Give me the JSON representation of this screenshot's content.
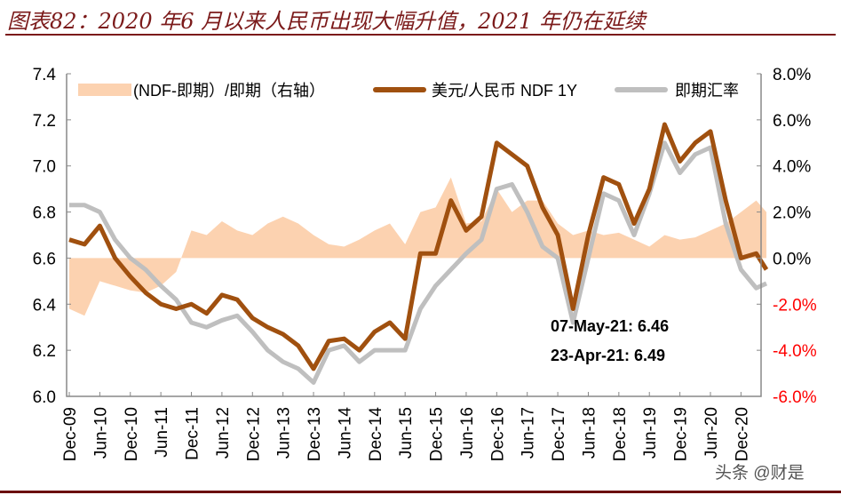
{
  "title": "图表82：2020 年6 月以来人民币出现大幅升值，2021 年仍在延续",
  "watermark": "头条 @财是",
  "chart_data": {
    "type": "line",
    "left_axis": {
      "ylim": [
        6.0,
        7.4
      ],
      "ticks": [
        "6.0",
        "6.2",
        "6.4",
        "6.6",
        "6.8",
        "7.0",
        "7.2",
        "7.4"
      ]
    },
    "right_axis": {
      "ylim": [
        -6.0,
        8.0
      ],
      "ticks": [
        "-6.0%",
        "-4.0%",
        "-2.0%",
        "0.0%",
        "2.0%",
        "4.0%",
        "6.0%",
        "8.0%"
      ],
      "negative_color": "#ff0000"
    },
    "x_tick_labels": [
      "Dec-09",
      "Jun-10",
      "Dec-10",
      "Jun-11",
      "Dec-11",
      "Jun-12",
      "Dec-12",
      "Jun-13",
      "Dec-13",
      "Jun-14",
      "Dec-14",
      "Jun-15",
      "Dec-15",
      "Jun-16",
      "Dec-16",
      "Jun-17",
      "Dec-17",
      "Jun-18",
      "Dec-18",
      "Jun-19",
      "Dec-19",
      "Jun-20",
      "Dec-20"
    ],
    "dates": [
      "2009-12",
      "2010-03",
      "2010-06",
      "2010-09",
      "2010-12",
      "2011-03",
      "2011-06",
      "2011-09",
      "2011-12",
      "2012-03",
      "2012-06",
      "2012-09",
      "2012-12",
      "2013-03",
      "2013-06",
      "2013-09",
      "2013-12",
      "2014-03",
      "2014-06",
      "2014-09",
      "2014-12",
      "2015-03",
      "2015-06",
      "2015-09",
      "2015-12",
      "2016-03",
      "2016-06",
      "2016-09",
      "2016-12",
      "2017-03",
      "2017-06",
      "2017-09",
      "2017-12",
      "2018-03",
      "2018-06",
      "2018-09",
      "2018-12",
      "2019-03",
      "2019-06",
      "2019-09",
      "2019-12",
      "2020-03",
      "2020-06",
      "2020-09",
      "2020-12",
      "2021-03",
      "2021-05"
    ],
    "series": [
      {
        "name": "(NDF-即期）/即期（右轴）",
        "type": "area",
        "axis": "right",
        "color": "#fcd2b0",
        "values": [
          -2.2,
          -2.5,
          -1.0,
          -1.2,
          -1.4,
          -1.5,
          -1.2,
          -0.6,
          1.2,
          1.0,
          1.6,
          1.2,
          1.0,
          1.5,
          1.8,
          1.5,
          1.0,
          0.6,
          0.5,
          0.8,
          1.2,
          1.5,
          0.6,
          2.0,
          2.2,
          3.5,
          1.5,
          1.6,
          3.0,
          2.0,
          2.5,
          2.5,
          1.5,
          1.0,
          1.2,
          1.0,
          1.1,
          0.8,
          0.5,
          1.0,
          0.8,
          0.9,
          1.2,
          1.5,
          2.0,
          2.5,
          2.0
        ]
      },
      {
        "name": "美元/人民币 NDF 1Y",
        "type": "line",
        "axis": "left",
        "color": "#a0500f",
        "values": [
          6.68,
          6.66,
          6.74,
          6.6,
          6.52,
          6.45,
          6.4,
          6.38,
          6.4,
          6.36,
          6.44,
          6.42,
          6.34,
          6.3,
          6.27,
          6.22,
          6.12,
          6.24,
          6.25,
          6.2,
          6.28,
          6.32,
          6.25,
          6.62,
          6.62,
          6.85,
          6.72,
          6.78,
          7.1,
          7.05,
          7.0,
          6.82,
          6.7,
          6.38,
          6.7,
          6.95,
          6.92,
          6.75,
          6.9,
          7.18,
          7.02,
          7.1,
          7.15,
          6.85,
          6.6,
          6.62,
          6.55
        ]
      },
      {
        "name": "即期汇率",
        "type": "line",
        "axis": "left",
        "color": "#bfbfbf",
        "values": [
          6.83,
          6.83,
          6.8,
          6.68,
          6.6,
          6.55,
          6.48,
          6.42,
          6.32,
          6.3,
          6.33,
          6.35,
          6.28,
          6.2,
          6.15,
          6.12,
          6.06,
          6.2,
          6.22,
          6.15,
          6.2,
          6.2,
          6.2,
          6.38,
          6.48,
          6.55,
          6.62,
          6.68,
          6.9,
          6.92,
          6.8,
          6.65,
          6.6,
          6.32,
          6.6,
          6.88,
          6.85,
          6.7,
          6.88,
          7.1,
          6.97,
          7.05,
          7.08,
          6.75,
          6.55,
          6.47,
          6.49
        ]
      }
    ],
    "annotations": [
      "07-May-21: 6.46",
      "23-Apr-21: 6.49"
    ],
    "legend": "top",
    "grid": false
  }
}
